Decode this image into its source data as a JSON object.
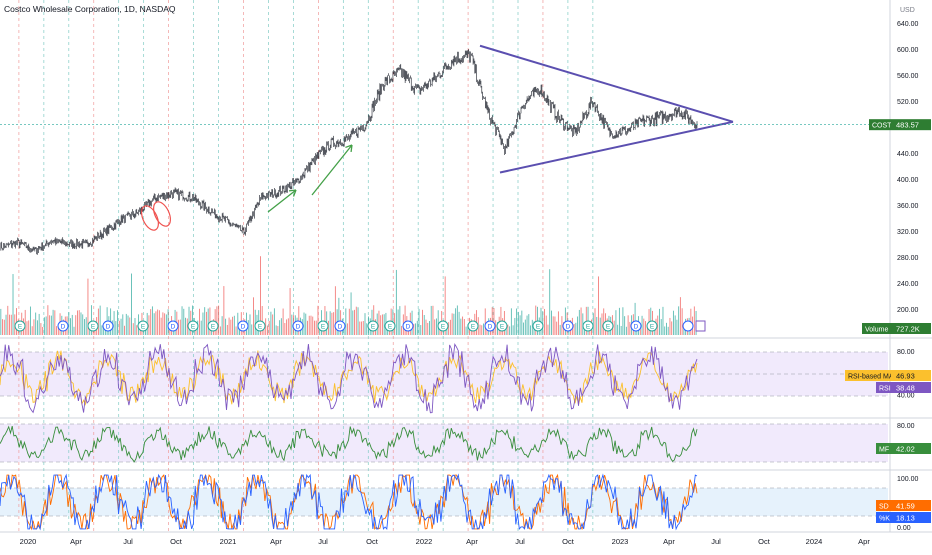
{
  "header": {
    "symbol_line": "Costco Wholesale Corporation, 1D, NASDAQ"
  },
  "price_axis": {
    "currency": "USD",
    "ticks": [
      "640.00",
      "600.00",
      "560.00",
      "520.00",
      "480.00",
      "440.00",
      "400.00",
      "360.00",
      "320.00",
      "280.00",
      "240.00",
      "200.00"
    ]
  },
  "badges": {
    "cost_label": "COST",
    "cost_value": "483.57",
    "volume_label": "Volume",
    "volume_value": "727.2K",
    "rsi_ma_label": "RSI-based MA",
    "rsi_ma_value": "46.93",
    "rsi_label": "RSI",
    "rsi_value": "38.48",
    "mf_label": "MF",
    "mf_value": "42.02",
    "sd_label": "SD",
    "sd_value": "41.59",
    "sk_label": "%K",
    "sk_value": "18.13"
  },
  "pane_axes": {
    "rsi_ticks": [
      "80.00",
      "60.00",
      "40.00"
    ],
    "mf_ticks": [
      "80.00"
    ],
    "stoch_ticks": [
      "100.00",
      "0.00"
    ]
  },
  "time_axis": {
    "labels": [
      "2020",
      "Apr",
      "Jul",
      "Oct",
      "2021",
      "Apr",
      "Jul",
      "Oct",
      "2022",
      "Apr",
      "Jul",
      "Oct",
      "2023",
      "Apr",
      "Jul",
      "Oct",
      "2024",
      "Apr"
    ]
  },
  "event_markers": [
    "E",
    "D",
    "E",
    "D",
    "E",
    "D",
    "E",
    "E",
    "D",
    "E",
    "D",
    "E",
    "D",
    "E",
    "E",
    "D",
    "E",
    "E",
    "D",
    "E",
    "E",
    "D",
    "E",
    "E",
    "D",
    "E"
  ],
  "colors": {
    "up": "#26a69a",
    "down": "#ef5350",
    "price": "#131722",
    "triangle": "#5b4fb0",
    "rsi": "#7e57c2",
    "rsi_ma": "#fbc02d",
    "mf": "#388e3c",
    "stoch_k": "#2962ff",
    "stoch_d": "#ff6d00"
  },
  "chart_data": [
    {
      "type": "line",
      "series": [
        {
          "name": "COST",
          "x": [
            "2020-01",
            "2020-02",
            "2020-03",
            "2020-04",
            "2020-05",
            "2020-06",
            "2020-07",
            "2020-08",
            "2020-09",
            "2020-10",
            "2020-11",
            "2020-12",
            "2021-01",
            "2021-02",
            "2021-03",
            "2021-04",
            "2021-05",
            "2021-06",
            "2021-07",
            "2021-08",
            "2021-09",
            "2021-10",
            "2021-11",
            "2021-12",
            "2022-01",
            "2022-02",
            "2022-03",
            "2022-04",
            "2022-05",
            "2022-06",
            "2022-07",
            "2022-08",
            "2022-09",
            "2022-10",
            "2022-11",
            "2022-12",
            "2023-01",
            "2023-02",
            "2023-03",
            "2023-04",
            "2023-05"
          ],
          "y": [
            295,
            302,
            290,
            305,
            300,
            300,
            318,
            338,
            350,
            372,
            378,
            372,
            352,
            335,
            318,
            372,
            380,
            395,
            428,
            455,
            462,
            485,
            548,
            565,
            535,
            555,
            585,
            590,
            502,
            445,
            515,
            540,
            495,
            470,
            520,
            470,
            475,
            490,
            495,
            505,
            483.57
          ]
        }
      ],
      "ylim": [
        160,
        660
      ],
      "ylabel": "USD"
    },
    {
      "type": "bar",
      "name": "Volume",
      "last": 727.2
    },
    {
      "type": "line",
      "name": "RSI",
      "series": [
        {
          "name": "RSI",
          "last": 38.48
        },
        {
          "name": "RSI-based MA",
          "last": 46.93
        }
      ],
      "ylim": [
        20,
        90
      ]
    },
    {
      "type": "line",
      "name": "MF",
      "series": [
        {
          "name": "MF",
          "last": 42.02
        }
      ],
      "ylim": [
        0,
        100
      ]
    },
    {
      "type": "line",
      "name": "Stochastic",
      "series": [
        {
          "name": "SD",
          "last": 41.59
        },
        {
          "name": "%K",
          "last": 18.13
        }
      ],
      "ylim": [
        0,
        100
      ]
    }
  ]
}
